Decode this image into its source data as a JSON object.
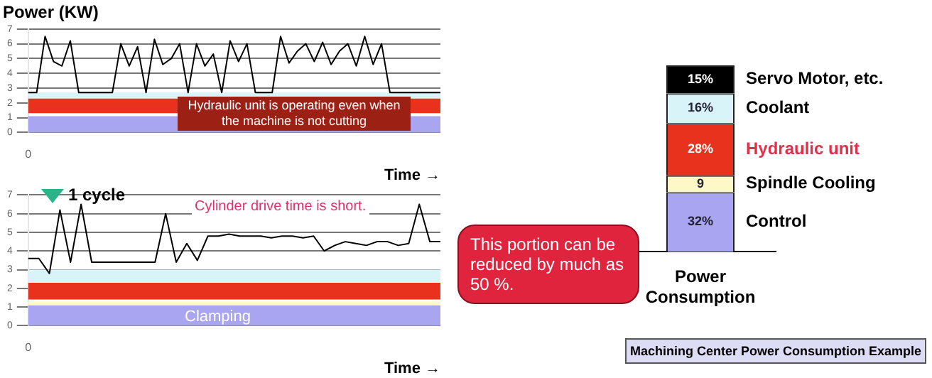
{
  "chart_data": [
    {
      "type": "line",
      "ylabel": "Power (KW)",
      "xlabel": "Time →",
      "categories": [
        "0",
        null,
        null,
        null,
        null,
        null,
        null,
        null,
        null,
        null,
        null,
        null,
        null,
        null,
        null,
        null,
        null,
        null,
        null,
        null,
        null,
        null,
        null,
        null,
        null,
        null,
        null,
        null,
        null,
        null,
        null,
        null,
        null,
        null,
        null,
        null,
        null,
        null,
        null,
        null,
        null,
        null,
        null,
        null,
        null,
        null,
        null,
        null,
        null,
        null
      ],
      "series": [
        {
          "color": "#000000",
          "values": [
            2.7,
            2.7,
            6.5,
            4.8,
            4.5,
            6.2,
            2.7,
            2.7,
            2.7,
            2.7,
            2.7,
            6,
            4.5,
            5.8,
            2.7,
            6.3,
            4.6,
            5,
            6,
            2.7,
            6,
            4.5,
            5.3,
            2.7,
            6.2,
            4.8,
            6,
            2.7,
            2.7,
            2.7,
            6.5,
            4.7,
            5.5,
            6,
            4.8,
            6.1,
            4.6,
            5.5,
            6,
            4.5,
            6.5,
            4.6,
            6,
            2.7,
            2.7,
            2.7,
            2.7,
            2.7,
            2.7,
            2.7
          ]
        }
      ],
      "ylim": [
        0,
        7
      ],
      "yticks": [
        0,
        1,
        2,
        3,
        4,
        5,
        6,
        7
      ],
      "grid": "y",
      "legend": false,
      "marker": "none",
      "bands": [
        {
          "axis": "y",
          "from": 0,
          "to": 1.1,
          "color": "#a9a5f0"
        },
        {
          "axis": "y",
          "from": 1.3,
          "to": 2.3,
          "color": "#e8321e"
        },
        {
          "axis": "y",
          "from": 2.3,
          "to": 2.7,
          "color": "#d8f4f8"
        }
      ],
      "annotations": [
        "Hydraulic unit is operating even when the machine is not cutting"
      ]
    },
    {
      "type": "line",
      "xlabel": "Time →",
      "categories": [
        "0",
        null,
        null,
        null,
        null,
        null,
        null,
        null,
        null,
        null,
        null,
        null,
        null,
        null,
        null,
        null,
        null,
        null,
        null,
        null,
        null,
        null,
        null,
        null,
        null,
        null,
        null,
        null,
        null,
        null,
        null,
        null,
        null,
        null,
        null,
        null,
        null,
        null,
        null,
        null
      ],
      "series": [
        {
          "color": "#000000",
          "values": [
            3.6,
            3.6,
            2.8,
            6.2,
            3.4,
            6.5,
            3.4,
            3.4,
            3.4,
            3.4,
            3.4,
            3.4,
            3.4,
            6,
            3.4,
            4.4,
            3.5,
            4.8,
            4.8,
            4.9,
            4.8,
            4.8,
            4.8,
            4.7,
            4.8,
            4.8,
            4.7,
            4.8,
            4,
            4.3,
            4.5,
            4.4,
            4.3,
            4.5,
            4.5,
            4.3,
            4.4,
            6.5,
            4.5,
            4.5
          ]
        }
      ],
      "ylim": [
        0,
        7
      ],
      "yticks": [
        0,
        1,
        2,
        3,
        4,
        5,
        6,
        7
      ],
      "grid": "y",
      "legend": false,
      "marker": "none",
      "bands": [
        {
          "axis": "y",
          "from": 0,
          "to": 1.1,
          "color": "#a9a5f0"
        },
        {
          "axis": "y",
          "from": 1.1,
          "to": 1.3,
          "color": "#fdf8c8"
        },
        {
          "axis": "y",
          "from": 1.4,
          "to": 2.3,
          "color": "#e8321e"
        },
        {
          "axis": "y",
          "from": 2.3,
          "to": 3,
          "color": "#d8f4f8"
        }
      ],
      "annotations": [
        "1 cycle",
        "Cylinder drive time is short.",
        "Clamping",
        "This portion can be reduced by much as 50 %."
      ]
    },
    {
      "type": "bar",
      "stacked": true,
      "categories": [
        "Power Consumption"
      ],
      "legend": false,
      "series": [
        {
          "name": "Control",
          "color": "#a9a5f0",
          "values": [
            32
          ],
          "value_labels": [
            "32%"
          ]
        },
        {
          "name": "Spindle Cooling",
          "color": "#fdf8c8",
          "values": [
            9
          ],
          "value_labels": [
            "9"
          ]
        },
        {
          "name": "Hydraulic unit",
          "color": "#e8321e",
          "values": [
            28
          ],
          "value_labels": [
            "28%"
          ]
        },
        {
          "name": "Coolant",
          "color": "#d8f4f8",
          "values": [
            16
          ],
          "value_labels": [
            "16%"
          ]
        },
        {
          "name": "Servo Motor, etc.",
          "color": "#000000",
          "values": [
            15
          ],
          "value_labels": [
            "15%"
          ]
        }
      ],
      "annotations": [
        "Machining Center Power Consumption Example"
      ]
    }
  ]
}
